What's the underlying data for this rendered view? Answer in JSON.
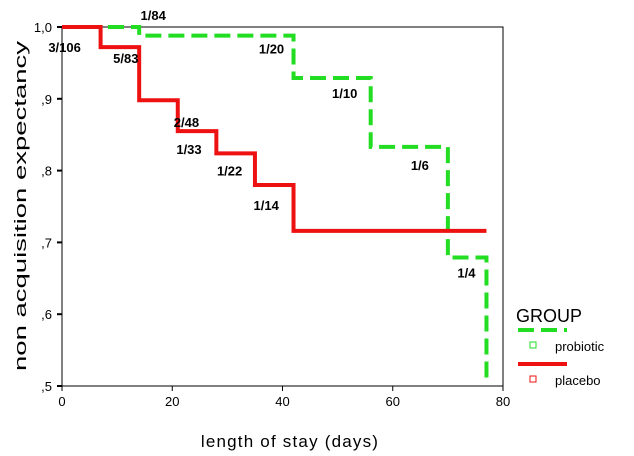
{
  "chart_data": {
    "type": "line",
    "subtype": "step (Kaplan-Meier)",
    "xlabel": "length of stay (days)",
    "ylabel": "non acquisition expectancy",
    "xlim": [
      0,
      80
    ],
    "ylim": [
      0.5,
      1.0
    ],
    "xticks": [
      0,
      20,
      40,
      60,
      80
    ],
    "xtick_labels": [
      "0",
      "20",
      "40",
      "60",
      "80"
    ],
    "yticks": [
      0.5,
      0.6,
      0.7,
      0.8,
      0.9,
      1.0
    ],
    "ytick_labels": [
      ",5",
      ",6",
      ",7",
      ",8",
      ",9",
      "1,0"
    ],
    "grid": false,
    "legend": {
      "title": "GROUP",
      "position": "bottom-right, outside plot"
    },
    "series": [
      {
        "name": "probiotic",
        "color": "#22dd22",
        "style": "dashed",
        "x": [
          0,
          14,
          42,
          56,
          70,
          77
        ],
        "y": [
          1.0,
          0.988,
          0.929,
          0.833,
          0.679,
          0.509
        ]
      },
      {
        "name": "placebo",
        "color": "#ee1111",
        "style": "solid",
        "x": [
          0,
          7,
          14,
          21,
          28,
          35,
          42
        ],
        "y": [
          1.0,
          0.972,
          0.898,
          0.855,
          0.824,
          0.78,
          0.716
        ],
        "end_x": 77
      }
    ],
    "annotations": [
      {
        "text": "1/84",
        "x": 14,
        "y": 1.0
      },
      {
        "text": "3/106",
        "x": 7,
        "y": 0.972
      },
      {
        "text": "5/83",
        "x": 14,
        "y": 0.972
      },
      {
        "text": "1/20",
        "x": 42,
        "y": 0.988
      },
      {
        "text": "2/48",
        "x": 21,
        "y": 0.898
      },
      {
        "text": "1/10",
        "x": 56,
        "y": 0.929
      },
      {
        "text": "1/33",
        "x": 28,
        "y": 0.855
      },
      {
        "text": "1/22",
        "x": 35,
        "y": 0.824
      },
      {
        "text": "1/6",
        "x": 70,
        "y": 0.833
      },
      {
        "text": "1/14",
        "x": 42,
        "y": 0.78
      },
      {
        "text": "1/4",
        "x": 77,
        "y": 0.679
      }
    ]
  }
}
